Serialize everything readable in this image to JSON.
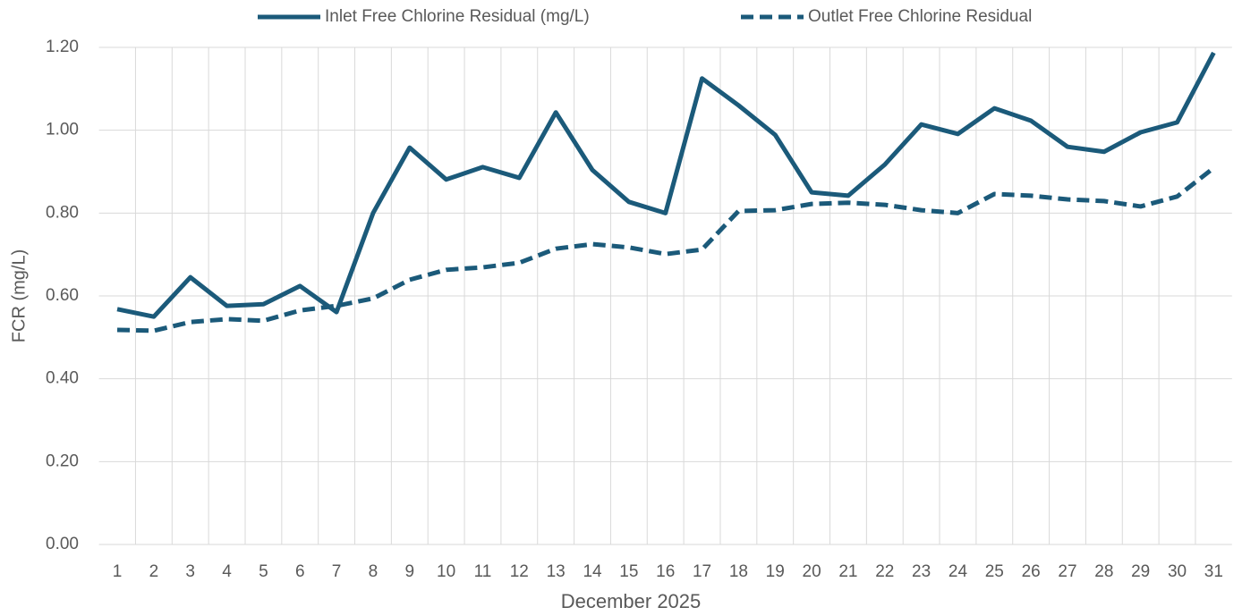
{
  "chart_data": {
    "type": "line",
    "x_label": "December 2025",
    "y_label": "FCR (mg/L)",
    "categories": [
      "1",
      "2",
      "3",
      "4",
      "5",
      "6",
      "7",
      "8",
      "9",
      "10",
      "11",
      "12",
      "13",
      "14",
      "15",
      "16",
      "17",
      "18",
      "19",
      "20",
      "21",
      "22",
      "23",
      "24",
      "25",
      "26",
      "27",
      "28",
      "29",
      "30",
      "31"
    ],
    "series": [
      {
        "name": "Inlet Free Chlorine Residual (mg/L)",
        "color": "#1b5a7a",
        "style": "solid",
        "values": [
          0.568,
          0.55,
          0.645,
          0.576,
          0.58,
          0.624,
          0.561,
          0.8,
          0.958,
          0.881,
          0.911,
          0.885,
          1.043,
          0.904,
          0.827,
          0.8,
          1.125,
          1.06,
          0.989,
          0.85,
          0.842,
          0.917,
          1.014,
          0.991,
          1.053,
          1.023,
          0.96,
          0.948,
          0.995,
          1.019,
          1.187
        ]
      },
      {
        "name": "Outlet Free Chlorine Residual",
        "color": "#1b5a7a",
        "style": "dashed",
        "values": [
          0.518,
          0.516,
          0.537,
          0.544,
          0.54,
          0.565,
          0.576,
          0.594,
          0.639,
          0.663,
          0.669,
          0.68,
          0.714,
          0.725,
          0.717,
          0.701,
          0.712,
          0.805,
          0.807,
          0.822,
          0.825,
          0.82,
          0.807,
          0.8,
          0.846,
          0.842,
          0.833,
          0.829,
          0.816,
          0.84,
          0.909
        ]
      }
    ],
    "ylim": [
      0,
      1.2
    ],
    "yticks": [
      {
        "value": 0,
        "label": "0.00"
      },
      {
        "value": 0.2,
        "label": "0.20"
      },
      {
        "value": 0.4,
        "label": "0.40"
      },
      {
        "value": 0.6,
        "label": "0.60"
      },
      {
        "value": 0.8,
        "label": "0.80"
      },
      {
        "value": 1.0,
        "label": "1.00"
      },
      {
        "value": 1.2,
        "label": "1.20"
      }
    ],
    "grid": true,
    "legend": "top"
  }
}
